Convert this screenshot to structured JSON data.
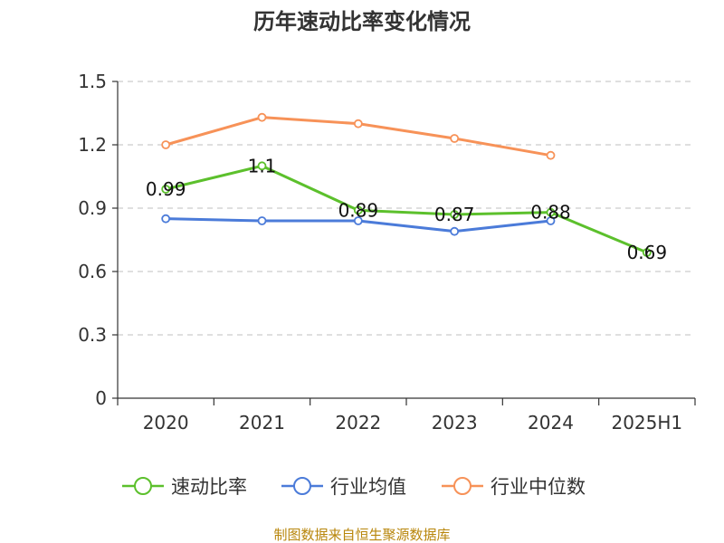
{
  "chart_data": {
    "type": "line",
    "title": "历年速动比率变化情况",
    "categories": [
      "2020",
      "2021",
      "2022",
      "2023",
      "2024",
      "2025H1"
    ],
    "y_ticks": [
      "0",
      "0.3",
      "0.6",
      "0.9",
      "1.2",
      "1.5"
    ],
    "ylim": [
      0,
      1.5
    ],
    "grid": true,
    "legend_position": "bottom",
    "series": [
      {
        "name": "速动比率",
        "color": "#5cc02c",
        "values": [
          0.99,
          1.1,
          0.89,
          0.87,
          0.88,
          0.69
        ],
        "labels": [
          "0.99",
          "1.1",
          "0.89",
          "0.87",
          "0.88",
          "0.69"
        ]
      },
      {
        "name": "行业均值",
        "color": "#4b7bd9",
        "values": [
          0.85,
          0.84,
          0.84,
          0.79,
          0.84,
          null
        ]
      },
      {
        "name": "行业中位数",
        "color": "#f79258",
        "values": [
          1.2,
          1.33,
          1.3,
          1.23,
          1.15,
          null
        ]
      }
    ],
    "source": "制图数据来自恒生聚源数据库"
  }
}
